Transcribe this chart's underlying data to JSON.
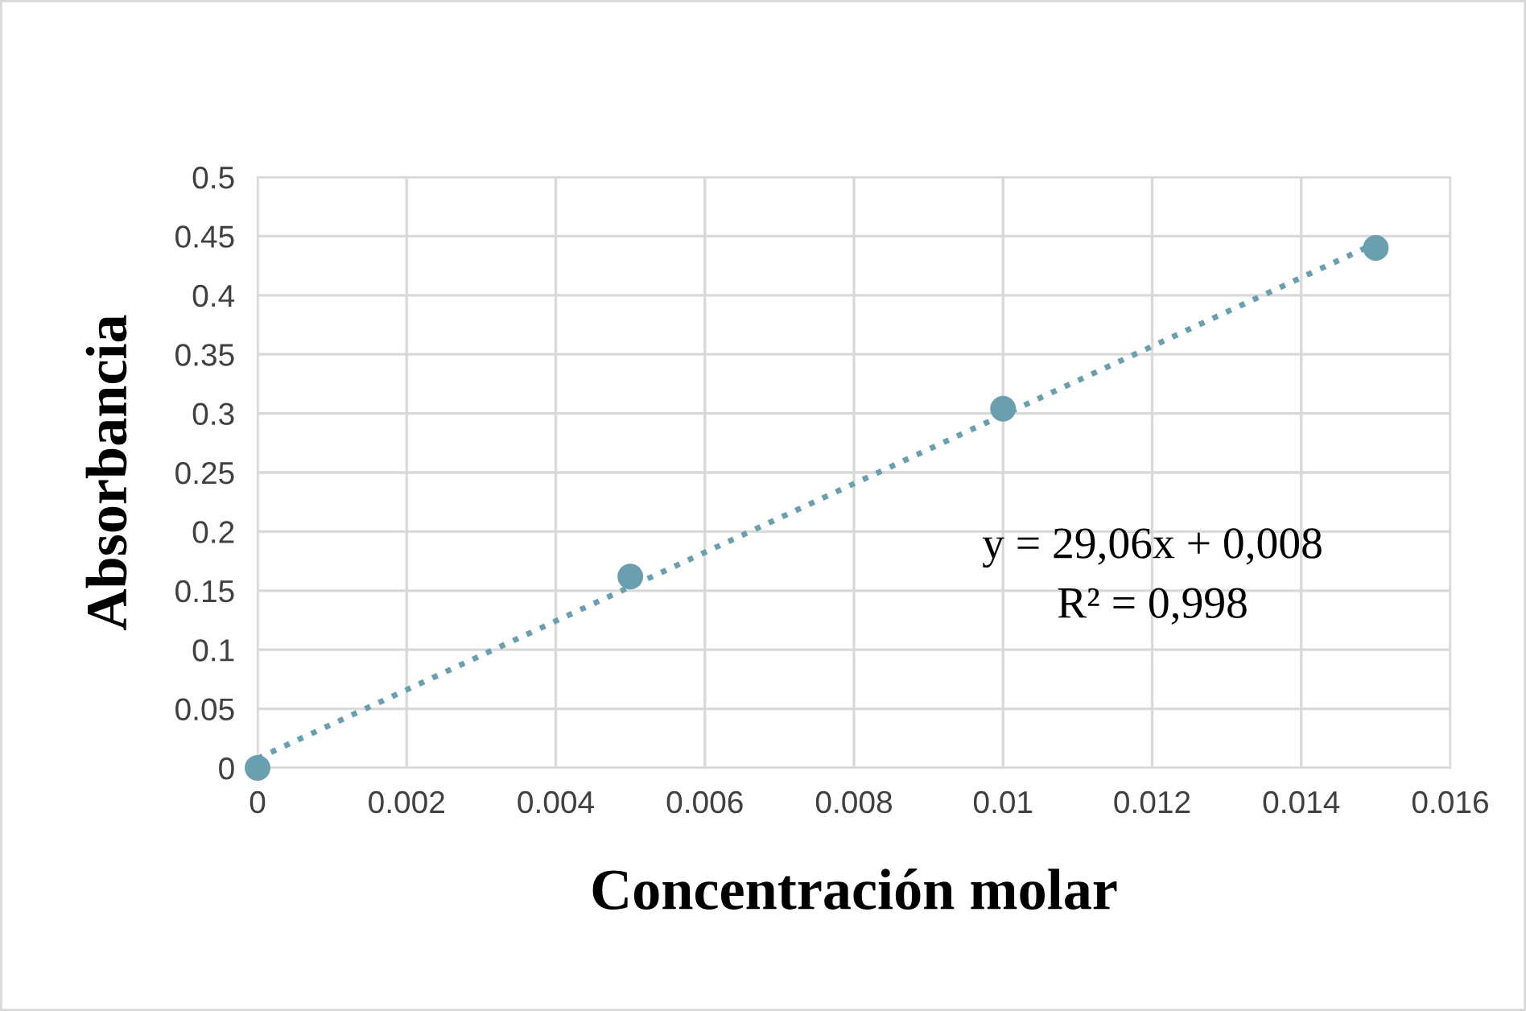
{
  "chart_data": {
    "type": "scatter",
    "xlabel": "Concentración molar",
    "ylabel": "Absorbancia",
    "series": [
      {
        "color": "#6a9fb0",
        "x": [
          0,
          0.005,
          0.01,
          0.015
        ],
        "values": [
          0,
          0.162,
          0.304,
          0.44
        ],
        "marker": "circle"
      },
      {
        "type": "line",
        "color": "#6a9fb0",
        "x": [
          0,
          0.015
        ],
        "values": [
          0.008,
          0.444
        ],
        "line_style": "dotted",
        "marker": "none"
      }
    ],
    "annotations": [
      "y = 29,06x + 0,008",
      "R² = 0,998"
    ],
    "xlim": [
      0,
      0.016
    ],
    "xticks": [
      0,
      0.002,
      0.004,
      0.006,
      0.008,
      0.01,
      0.012,
      0.014,
      0.016
    ],
    "ylim": [
      0,
      0.5
    ],
    "yticks": [
      0,
      0.05,
      0.1,
      0.15,
      0.2,
      0.25,
      0.3,
      0.35,
      0.4,
      0.45,
      0.5
    ],
    "grid": true,
    "legend": false
  }
}
